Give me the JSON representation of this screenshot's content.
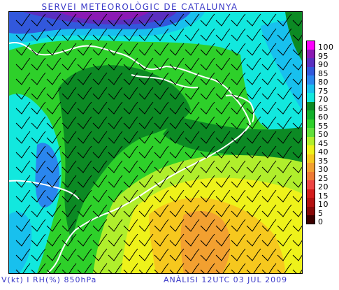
{
  "header": {
    "title": "SERVEI METEOROLÒGIC DE CATALUNYA"
  },
  "footer": {
    "left": "V(kt) I RH(%) 850hPa",
    "right": "ANÀLISI 12UTC 03 JUL 2009"
  },
  "legend": [
    {
      "label": "100",
      "color": "#ff00ff"
    },
    {
      "label": "95",
      "color": "#8b1ab4"
    },
    {
      "label": "90",
      "color": "#5a2fc0"
    },
    {
      "label": "85",
      "color": "#3258dc"
    },
    {
      "label": "80",
      "color": "#2a86ee"
    },
    {
      "label": "75",
      "color": "#18c0ee"
    },
    {
      "label": "70",
      "color": "#12e8de"
    },
    {
      "label": "65",
      "color": "#0c8a24"
    },
    {
      "label": "60",
      "color": "#11b02a"
    },
    {
      "label": "55",
      "color": "#2ed02a"
    },
    {
      "label": "50",
      "color": "#60e03a"
    },
    {
      "label": "45",
      "color": "#b0ee2c"
    },
    {
      "label": "40",
      "color": "#eef21a"
    },
    {
      "label": "35",
      "color": "#f6c81e"
    },
    {
      "label": "30",
      "color": "#f2a030"
    },
    {
      "label": "25",
      "color": "#ee7a34"
    },
    {
      "label": "20",
      "color": "#ee4444"
    },
    {
      "label": "15",
      "color": "#d41c1c"
    },
    {
      "label": "10",
      "color": "#b41010"
    },
    {
      "label": "5",
      "color": "#880808"
    },
    {
      "label": "0",
      "color": "#3c0000"
    }
  ],
  "map": {
    "ocean_color": "#12e8de",
    "coastline_color": "#ffffff",
    "wind_barb_color": "#000000"
  }
}
